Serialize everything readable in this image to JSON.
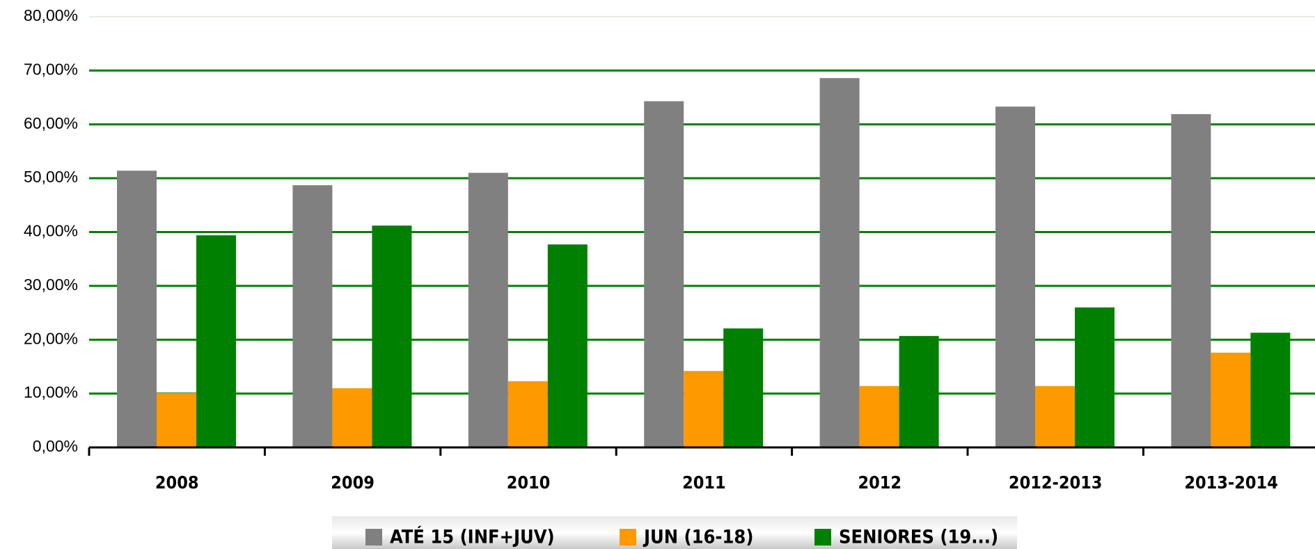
{
  "chart_data": {
    "type": "bar",
    "categories": [
      "2008",
      "2009",
      "2010",
      "2011",
      "2012",
      "2012-2013",
      "2013-2014"
    ],
    "series": [
      {
        "name": "ATÉ 15 (INF+JUV)",
        "color": "#808080",
        "values": [
          51.4,
          48.7,
          51.0,
          64.3,
          68.6,
          63.3,
          61.9
        ]
      },
      {
        "name": "JUN (16-18)",
        "color": "#ff9900",
        "values": [
          10.1,
          11.0,
          12.3,
          14.2,
          11.4,
          11.4,
          17.6
        ]
      },
      {
        "name": "SENIORES (19...)",
        "color": "#008000",
        "values": [
          39.4,
          41.2,
          37.7,
          22.1,
          20.7,
          26.0,
          21.3
        ]
      }
    ],
    "ylim": [
      0,
      80
    ],
    "yticks": [
      {
        "value": 0,
        "label": "0,00%"
      },
      {
        "value": 10,
        "label": "10,00%"
      },
      {
        "value": 20,
        "label": "20,00%"
      },
      {
        "value": 30,
        "label": "30,00%"
      },
      {
        "value": 40,
        "label": "40,00%"
      },
      {
        "value": 50,
        "label": "50,00%"
      },
      {
        "value": 60,
        "label": "60,00%"
      },
      {
        "value": 70,
        "label": "70,00%"
      },
      {
        "value": 80,
        "label": "80,00%"
      }
    ],
    "grid": true,
    "grid_color": "#008000",
    "legend": "bottom"
  }
}
